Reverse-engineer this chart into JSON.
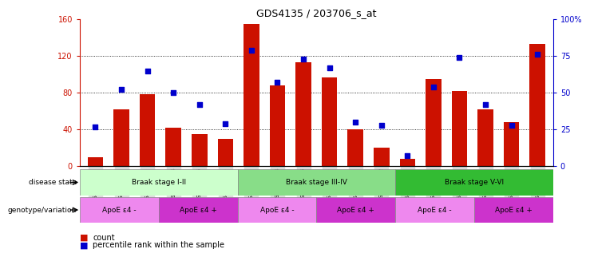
{
  "title": "GDS4135 / 203706_s_at",
  "samples": [
    "GSM735097",
    "GSM735098",
    "GSM735099",
    "GSM735094",
    "GSM735095",
    "GSM735096",
    "GSM735103",
    "GSM735104",
    "GSM735105",
    "GSM735100",
    "GSM735101",
    "GSM735102",
    "GSM735109",
    "GSM735110",
    "GSM735111",
    "GSM735106",
    "GSM735107",
    "GSM735108"
  ],
  "counts": [
    10,
    62,
    78,
    42,
    35,
    30,
    155,
    88,
    113,
    97,
    40,
    20,
    8,
    95,
    82,
    62,
    48,
    133
  ],
  "percentiles": [
    27,
    52,
    65,
    50,
    42,
    29,
    79,
    57,
    73,
    67,
    30,
    28,
    7,
    54,
    74,
    42,
    28,
    76
  ],
  "bar_color": "#cc1100",
  "dot_color": "#0000cc",
  "ylim_left": [
    0,
    160
  ],
  "ylim_right": [
    0,
    100
  ],
  "yticks_left": [
    0,
    40,
    80,
    120,
    160
  ],
  "yticks_right": [
    0,
    25,
    50,
    75,
    100
  ],
  "ytick_labels_right": [
    "0",
    "25",
    "50",
    "75",
    "100%"
  ],
  "grid_values": [
    40,
    80,
    120
  ],
  "disease_state_label": "disease state",
  "genotype_label": "genotype/variation",
  "disease_groups": [
    {
      "label": "Braak stage I-II",
      "start": 0,
      "end": 6,
      "color": "#ccffcc"
    },
    {
      "label": "Braak stage III-IV",
      "start": 6,
      "end": 12,
      "color": "#88dd88"
    },
    {
      "label": "Braak stage V-VI",
      "start": 12,
      "end": 18,
      "color": "#33bb33"
    }
  ],
  "genotype_groups": [
    {
      "label": "ApoE ε4 -",
      "start": 0,
      "end": 3,
      "color": "#ee88ee"
    },
    {
      "label": "ApoE ε4 +",
      "start": 3,
      "end": 6,
      "color": "#cc33cc"
    },
    {
      "label": "ApoE ε4 -",
      "start": 6,
      "end": 9,
      "color": "#ee88ee"
    },
    {
      "label": "ApoE ε4 +",
      "start": 9,
      "end": 12,
      "color": "#cc33cc"
    },
    {
      "label": "ApoE ε4 -",
      "start": 12,
      "end": 15,
      "color": "#ee88ee"
    },
    {
      "label": "ApoE ε4 +",
      "start": 15,
      "end": 18,
      "color": "#cc33cc"
    }
  ],
  "legend_count_label": "count",
  "legend_pct_label": "percentile rank within the sample",
  "background_color": "#ffffff",
  "tick_label_bg": "#dddddd"
}
